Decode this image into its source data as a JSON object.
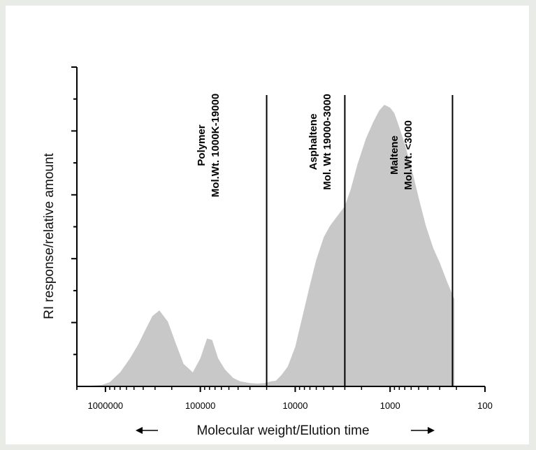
{
  "chart_data": {
    "type": "area",
    "title": "",
    "xlabel": "Molecular weight/Elution time",
    "ylabel": "RI response/relative amount",
    "x_scale": "log",
    "x_reversed": true,
    "xlim": [
      2000000,
      100
    ],
    "ylim": [
      0,
      1.0
    ],
    "x_ticks": [
      {
        "value": 1000000,
        "label": "1000000"
      },
      {
        "value": 100000,
        "label": "100000"
      },
      {
        "value": 10000,
        "label": "10000"
      },
      {
        "value": 1000,
        "label": "1000"
      },
      {
        "value": 100,
        "label": "100"
      }
    ],
    "y_tick_count": 10,
    "fill_color": "#c8c8c8",
    "series": [
      {
        "x": [
          2000000,
          1500000,
          1100000,
          900000,
          700000,
          550000,
          450000,
          380000,
          320000,
          270000,
          220000,
          180000,
          150000,
          120000,
          100000,
          85000,
          75000,
          65000,
          55000,
          45000,
          38000,
          30000,
          25000,
          21000,
          18000,
          16000,
          14000,
          12000,
          10000,
          8500,
          7000,
          6000,
          5000,
          4300,
          3700,
          3000,
          2600,
          2200,
          1800,
          1500,
          1300,
          1150,
          1000,
          900,
          800,
          700,
          600,
          500,
          420,
          350,
          300,
          250,
          210
        ],
        "y": [
          0.002,
          0.002,
          0.005,
          0.015,
          0.05,
          0.1,
          0.15,
          0.2,
          0.25,
          0.27,
          0.23,
          0.15,
          0.08,
          0.05,
          0.1,
          0.17,
          0.165,
          0.1,
          0.06,
          0.03,
          0.018,
          0.012,
          0.01,
          0.012,
          0.018,
          0.02,
          0.04,
          0.07,
          0.14,
          0.24,
          0.36,
          0.45,
          0.53,
          0.57,
          0.6,
          0.64,
          0.7,
          0.79,
          0.88,
          0.94,
          0.98,
          1.0,
          0.99,
          0.97,
          0.92,
          0.86,
          0.78,
          0.67,
          0.57,
          0.49,
          0.44,
          0.37,
          0.31
        ]
      }
    ],
    "dividers": [
      20000,
      3000,
      220
    ],
    "annotations": [
      {
        "lines": [
          "Polymer",
          "Mol.Wt. 1000K-19000"
        ]
      },
      {
        "lines": [
          "Asphaltene",
          "Mol. Wt 19000-3000"
        ]
      },
      {
        "lines": [
          "Maltene",
          "Mol.Wt. <3000"
        ]
      }
    ]
  }
}
